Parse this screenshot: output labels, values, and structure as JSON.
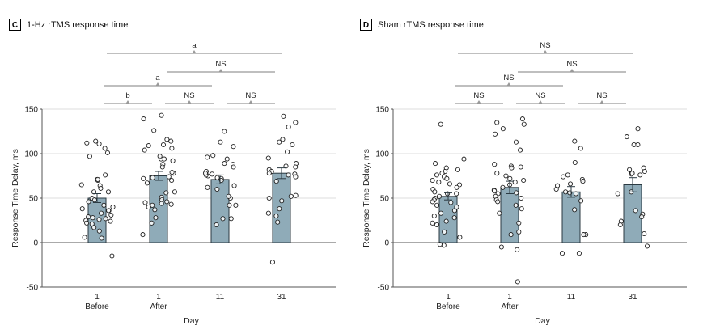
{
  "chart_data": [
    {
      "type": "bar",
      "panel_letter": "C",
      "title": "1-Hz rTMS response time",
      "xlabel": "Day",
      "ylabel": "Response Time Delay, ms",
      "ylim": [
        -50,
        150
      ],
      "yticks": [
        -50,
        0,
        50,
        100,
        150
      ],
      "grid": true,
      "categories": [
        {
          "line1": "1",
          "line2": "Before"
        },
        {
          "line1": "1",
          "line2": "After"
        },
        {
          "line1": "11",
          "line2": ""
        },
        {
          "line1": "31",
          "line2": ""
        }
      ],
      "means": [
        50,
        75,
        71,
        78
      ],
      "sem": [
        5,
        5,
        5,
        6
      ],
      "points": [
        [
          112,
          106,
          111,
          114,
          97,
          101,
          76,
          71,
          70,
          71,
          65,
          64,
          61,
          57,
          57,
          50,
          48,
          46,
          40,
          42,
          36,
          36,
          38,
          33,
          31,
          29,
          27,
          25,
          24,
          22,
          21,
          26,
          28,
          17,
          13,
          6,
          5,
          -15
        ],
        [
          143,
          139,
          126,
          114,
          109,
          106,
          110,
          116,
          104,
          94,
          92,
          94,
          97,
          88,
          85,
          78,
          79,
          72,
          74,
          70,
          73,
          67,
          57,
          51,
          56,
          48,
          46,
          44,
          42,
          40,
          45,
          37,
          43,
          28,
          22,
          9
        ],
        [
          125,
          113,
          108,
          94,
          96,
          98,
          88,
          89,
          85,
          80,
          75,
          76,
          78,
          77,
          72,
          70,
          73,
          60,
          64,
          62,
          50,
          52,
          42,
          42,
          27,
          27,
          20
        ],
        [
          142,
          135,
          130,
          116,
          113,
          110,
          102,
          95,
          89,
          85,
          86,
          82,
          80,
          78,
          76,
          77,
          74,
          69,
          52,
          53,
          50,
          47,
          38,
          33,
          30,
          23,
          -22
        ]
      ],
      "comparisons": [
        {
          "from": 0,
          "to": 1,
          "label": "b",
          "level": 1
        },
        {
          "from": 1,
          "to": 2,
          "label": "NS",
          "level": 1
        },
        {
          "from": 2,
          "to": 3,
          "label": "NS",
          "level": 1
        },
        {
          "from": 0,
          "to": 2,
          "label": "a",
          "level": 2
        },
        {
          "from": 1,
          "to": 3,
          "label": "NS",
          "level": 3
        },
        {
          "from": 0,
          "to": 3,
          "label": "a",
          "level": 4
        }
      ]
    },
    {
      "type": "bar",
      "panel_letter": "D",
      "title": "Sham rTMS response time",
      "xlabel": "Day",
      "ylabel": "Response Time Delay, ms",
      "ylim": [
        -50,
        150
      ],
      "yticks": [
        -50,
        0,
        50,
        100,
        150
      ],
      "grid": true,
      "categories": [
        {
          "line1": "1",
          "line2": "Before"
        },
        {
          "line1": "1",
          "line2": "After"
        },
        {
          "line1": "11",
          "line2": ""
        },
        {
          "line1": "31",
          "line2": ""
        }
      ],
      "means": [
        52,
        62,
        57,
        65
      ],
      "sem": [
        4,
        7,
        6,
        8
      ],
      "points": [
        [
          133,
          94,
          89,
          84,
          82,
          80,
          78,
          76,
          74,
          72,
          70,
          68,
          66,
          65,
          62,
          60,
          57,
          55,
          55,
          52,
          50,
          48,
          46,
          45,
          42,
          40,
          36,
          33,
          30,
          28,
          24,
          22,
          20,
          12,
          6,
          -3,
          -2
        ],
        [
          139,
          135,
          133,
          128,
          122,
          113,
          104,
          88,
          86,
          85,
          84,
          78,
          75,
          72,
          70,
          68,
          65,
          62,
          59,
          58,
          56,
          55,
          52,
          50,
          48,
          46,
          42,
          38,
          33,
          22,
          12,
          9,
          -5,
          -8,
          -44
        ],
        [
          114,
          106,
          90,
          76,
          74,
          71,
          69,
          66,
          64,
          60,
          57,
          56,
          55,
          47,
          37,
          9,
          9,
          -12,
          -12
        ],
        [
          128,
          119,
          110,
          110,
          84,
          80,
          78,
          77,
          76,
          78,
          82,
          57,
          55,
          32,
          36,
          24,
          20,
          29,
          10,
          -4
        ]
      ],
      "comparisons": [
        {
          "from": 0,
          "to": 1,
          "label": "NS",
          "level": 1
        },
        {
          "from": 1,
          "to": 2,
          "label": "NS",
          "level": 1
        },
        {
          "from": 2,
          "to": 3,
          "label": "NS",
          "level": 1
        },
        {
          "from": 0,
          "to": 2,
          "label": "NS",
          "level": 2
        },
        {
          "from": 1,
          "to": 3,
          "label": "NS",
          "level": 3
        },
        {
          "from": 0,
          "to": 3,
          "label": "NS",
          "level": 4
        }
      ]
    }
  ],
  "colors": {
    "bar_fill": "#8fabb8",
    "bar_stroke": "#2b3a42",
    "grid": "#dedede",
    "axis": "#555555",
    "bracket": "#999999",
    "point_stroke": "#222222"
  }
}
